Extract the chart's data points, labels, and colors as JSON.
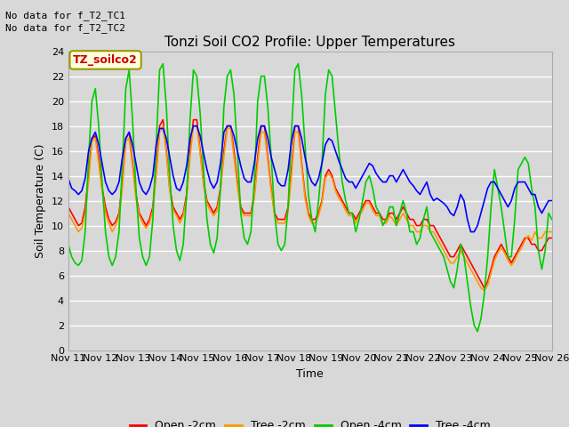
{
  "title": "Tonzi Soil CO2 Profile: Upper Temperatures",
  "xlabel": "Time",
  "ylabel": "Soil Temperature (C)",
  "no_data_text": [
    "No data for f_T2_TC1",
    "No data for f_T2_TC2"
  ],
  "legend_label_text": "TZ_soilco2",
  "legend_entries": [
    "Open -2cm",
    "Tree -2cm",
    "Open -4cm",
    "Tree -4cm"
  ],
  "legend_colors": [
    "#ff0000",
    "#ff9900",
    "#00cc00",
    "#0000ff"
  ],
  "ylim": [
    0,
    24
  ],
  "yticks": [
    0,
    2,
    4,
    6,
    8,
    10,
    12,
    14,
    16,
    18,
    20,
    22,
    24
  ],
  "x_tick_labels": [
    "Nov 11",
    "Nov 12",
    "Nov 13",
    "Nov 14",
    "Nov 15",
    "Nov 16",
    "Nov 17",
    "Nov 18",
    "Nov 19",
    "Nov 20",
    "Nov 21",
    "Nov 22",
    "Nov 23",
    "Nov 24",
    "Nov 25",
    "Nov 26"
  ],
  "bg_color": "#d8d8d8",
  "line_width": 1.2,
  "open_2cm": [
    11.5,
    11.0,
    10.5,
    10.0,
    10.2,
    11.5,
    14.0,
    17.0,
    17.2,
    15.5,
    13.0,
    11.5,
    10.5,
    10.0,
    10.3,
    11.0,
    13.5,
    17.0,
    17.5,
    15.0,
    12.5,
    11.0,
    10.5,
    10.0,
    10.5,
    11.5,
    14.5,
    18.0,
    18.5,
    16.0,
    13.0,
    11.5,
    11.0,
    10.5,
    11.0,
    12.5,
    16.0,
    18.5,
    18.5,
    16.0,
    13.5,
    12.0,
    11.5,
    11.0,
    11.5,
    13.0,
    16.0,
    18.0,
    18.0,
    16.0,
    13.5,
    11.5,
    11.0,
    11.0,
    11.0,
    12.5,
    15.5,
    18.0,
    18.0,
    15.5,
    13.0,
    11.0,
    10.5,
    10.5,
    10.5,
    11.5,
    14.5,
    18.0,
    18.0,
    15.0,
    12.5,
    11.0,
    10.5,
    10.5,
    11.0,
    12.0,
    14.0,
    14.5,
    14.0,
    13.0,
    12.5,
    12.0,
    11.5,
    11.0,
    11.0,
    10.5,
    11.0,
    11.5,
    12.0,
    12.0,
    11.5,
    11.0,
    11.0,
    10.5,
    10.5,
    11.0,
    11.0,
    10.5,
    11.0,
    11.5,
    11.0,
    10.5,
    10.5,
    10.0,
    10.0,
    10.5,
    10.5,
    10.0,
    10.0,
    9.5,
    9.0,
    8.5,
    8.0,
    7.5,
    7.5,
    8.0,
    8.5,
    8.0,
    7.5,
    7.0,
    6.5,
    6.0,
    5.5,
    5.0,
    5.5,
    6.5,
    7.5,
    8.0,
    8.5,
    8.0,
    7.5,
    7.0,
    7.5,
    8.0,
    8.5,
    9.0,
    9.0,
    8.5,
    8.5,
    8.0,
    8.0,
    8.5,
    9.0,
    9.0
  ],
  "tree_2cm": [
    11.0,
    10.5,
    10.0,
    9.5,
    9.8,
    11.0,
    13.5,
    16.8,
    17.0,
    15.0,
    12.8,
    11.0,
    10.2,
    9.5,
    10.0,
    10.8,
    13.0,
    16.8,
    17.0,
    14.8,
    12.2,
    10.8,
    10.2,
    9.8,
    10.2,
    11.2,
    14.0,
    17.5,
    18.0,
    15.8,
    12.8,
    11.2,
    10.8,
    10.2,
    10.8,
    12.2,
    15.5,
    18.0,
    18.0,
    15.8,
    13.2,
    11.8,
    11.2,
    10.8,
    11.2,
    12.8,
    15.5,
    17.8,
    17.8,
    15.5,
    13.2,
    11.2,
    10.8,
    10.8,
    10.8,
    12.2,
    15.0,
    17.5,
    17.5,
    15.2,
    12.8,
    10.8,
    10.2,
    10.2,
    10.2,
    11.2,
    14.0,
    17.5,
    17.5,
    14.8,
    12.2,
    10.8,
    10.2,
    10.2,
    10.8,
    11.8,
    13.8,
    14.2,
    13.8,
    12.8,
    12.2,
    11.8,
    11.2,
    10.8,
    10.8,
    10.2,
    10.8,
    11.2,
    11.8,
    11.8,
    11.2,
    10.8,
    10.8,
    10.2,
    10.2,
    10.8,
    10.5,
    10.0,
    10.5,
    11.0,
    10.5,
    10.0,
    10.0,
    9.5,
    9.5,
    10.0,
    10.0,
    9.5,
    9.5,
    9.0,
    8.5,
    8.0,
    7.5,
    7.0,
    7.0,
    7.5,
    8.0,
    7.5,
    7.0,
    6.5,
    6.0,
    5.5,
    5.0,
    4.8,
    5.2,
    6.2,
    7.2,
    7.8,
    8.2,
    7.8,
    7.2,
    6.8,
    7.2,
    7.8,
    8.2,
    8.8,
    9.2,
    8.8,
    9.5,
    9.0,
    9.0,
    9.5,
    9.5,
    9.5
  ],
  "open_4cm": [
    8.5,
    7.5,
    7.0,
    6.8,
    7.2,
    9.5,
    15.5,
    20.0,
    21.0,
    18.0,
    13.5,
    9.5,
    7.5,
    6.8,
    7.5,
    9.5,
    15.0,
    21.0,
    22.5,
    18.5,
    13.0,
    9.0,
    7.5,
    6.8,
    7.5,
    10.5,
    16.5,
    22.5,
    23.0,
    19.5,
    14.0,
    10.0,
    8.0,
    7.2,
    8.5,
    12.5,
    18.5,
    22.5,
    22.0,
    19.0,
    14.5,
    10.5,
    8.5,
    7.8,
    9.0,
    13.0,
    19.5,
    22.0,
    22.5,
    20.5,
    16.0,
    11.0,
    9.0,
    8.5,
    9.5,
    13.5,
    20.0,
    22.0,
    22.0,
    19.5,
    15.5,
    11.0,
    8.5,
    8.0,
    8.5,
    11.5,
    17.5,
    22.5,
    23.0,
    20.5,
    16.5,
    12.5,
    10.5,
    9.5,
    12.0,
    15.0,
    20.5,
    22.5,
    22.0,
    19.0,
    16.0,
    13.5,
    12.0,
    11.0,
    11.0,
    9.5,
    10.5,
    12.0,
    13.5,
    14.0,
    13.0,
    11.5,
    11.0,
    10.0,
    10.5,
    11.5,
    11.5,
    10.0,
    11.0,
    12.0,
    11.0,
    9.5,
    9.5,
    8.5,
    9.0,
    10.5,
    11.5,
    9.5,
    9.0,
    8.5,
    8.0,
    7.5,
    6.5,
    5.5,
    5.0,
    6.5,
    8.5,
    7.5,
    5.5,
    3.5,
    2.0,
    1.5,
    2.5,
    4.5,
    7.5,
    11.5,
    14.5,
    13.0,
    11.5,
    9.5,
    7.5,
    7.5,
    10.5,
    14.5,
    15.0,
    15.5,
    15.0,
    13.0,
    11.5,
    8.0,
    6.5,
    8.0,
    11.0,
    10.5
  ],
  "tree_4cm": [
    13.8,
    13.0,
    12.8,
    12.5,
    12.8,
    13.8,
    16.0,
    17.0,
    17.5,
    16.5,
    15.0,
    13.5,
    12.8,
    12.5,
    12.8,
    13.5,
    15.5,
    17.0,
    17.5,
    16.5,
    15.0,
    13.5,
    12.8,
    12.5,
    13.0,
    14.0,
    16.5,
    17.8,
    17.8,
    17.0,
    15.5,
    14.0,
    13.0,
    12.8,
    13.5,
    14.8,
    17.0,
    18.0,
    18.0,
    17.2,
    15.8,
    14.5,
    13.5,
    13.0,
    13.5,
    15.0,
    17.5,
    18.0,
    18.0,
    17.2,
    16.0,
    14.8,
    13.8,
    13.5,
    13.5,
    15.0,
    17.0,
    18.0,
    18.0,
    17.0,
    15.5,
    14.5,
    13.5,
    13.2,
    13.2,
    14.5,
    16.8,
    18.0,
    18.0,
    17.0,
    15.5,
    14.2,
    13.5,
    13.2,
    13.8,
    15.0,
    16.5,
    17.0,
    16.8,
    16.0,
    15.2,
    14.5,
    13.8,
    13.5,
    13.5,
    13.0,
    13.5,
    14.0,
    14.5,
    15.0,
    14.8,
    14.2,
    13.8,
    13.5,
    13.5,
    14.0,
    14.0,
    13.5,
    14.0,
    14.5,
    14.0,
    13.5,
    13.2,
    12.8,
    12.5,
    13.0,
    13.5,
    12.5,
    12.0,
    12.2,
    12.0,
    11.8,
    11.5,
    11.0,
    10.8,
    11.5,
    12.5,
    12.0,
    10.5,
    9.5,
    9.5,
    10.0,
    11.0,
    12.0,
    13.0,
    13.5,
    13.5,
    13.0,
    12.5,
    12.0,
    11.5,
    12.0,
    13.0,
    13.5,
    13.5,
    13.5,
    13.0,
    12.5,
    12.5,
    11.5,
    11.0,
    11.5,
    12.0,
    12.0
  ]
}
